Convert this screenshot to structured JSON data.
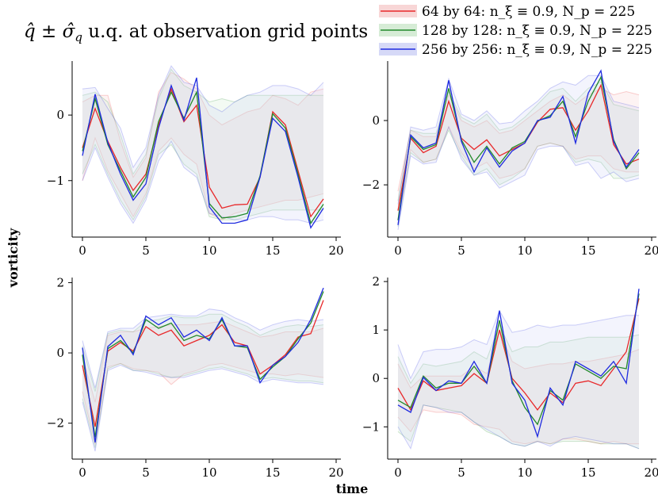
{
  "figure": {
    "title": "q̂ ± σ̂_q u.q. at observation grid points",
    "ylabel": "vorticity",
    "xlabel": "time"
  },
  "legend": [
    {
      "label": "64 by 64: n_ξ ≡ 0.9, N_p = 225",
      "color": "#e8282a",
      "fill": "#f6c8c8"
    },
    {
      "label": "128 by 128: n_ξ ≡ 0.9, N_p = 225",
      "color": "#22892b",
      "fill": "#c8e6c8"
    },
    {
      "label": "256 by 256: n_ξ ≡ 0.9, N_p = 225",
      "color": "#1f2be0",
      "fill": "#c8ccf4"
    }
  ],
  "chart_data": [
    {
      "type": "line",
      "panel": "top-left",
      "xlim": [
        -1,
        20
      ],
      "ylim": [
        -1.85,
        0.8
      ],
      "xticks": [
        0,
        5,
        10,
        15,
        20
      ],
      "yticks": [
        -1,
        0
      ],
      "x": [
        0,
        1,
        2,
        3,
        4,
        5,
        6,
        7,
        8,
        9,
        10,
        11,
        12,
        13,
        14,
        15,
        16,
        17,
        18,
        19
      ],
      "series": [
        {
          "name": "64 by 64",
          "values": [
            -0.5,
            0.1,
            -0.4,
            -0.8,
            -1.15,
            -0.9,
            -0.15,
            0.4,
            -0.1,
            0.15,
            -1.1,
            -1.42,
            -1.37,
            -1.36,
            -0.95,
            0.05,
            -0.15,
            -0.85,
            -1.55,
            -1.28
          ],
          "upper": [
            0.2,
            0.3,
            0.3,
            -0.4,
            -0.95,
            -0.65,
            0.35,
            0.65,
            0.55,
            0.4,
            0.0,
            -0.15,
            -0.05,
            0.05,
            0.1,
            0.3,
            0.25,
            0.15,
            0.35,
            0.4
          ],
          "lower": [
            -1.0,
            -0.35,
            -0.85,
            -1.2,
            -1.55,
            -1.2,
            -0.55,
            -0.35,
            -0.6,
            -0.75,
            -1.5,
            -1.6,
            -1.5,
            -1.45,
            -1.4,
            -1.35,
            -1.3,
            -1.3,
            -1.25,
            -1.2
          ]
        },
        {
          "name": "128 by 128",
          "values": [
            -0.55,
            0.25,
            -0.45,
            -0.85,
            -1.25,
            -0.95,
            -0.1,
            0.35,
            -0.05,
            0.35,
            -1.35,
            -1.57,
            -1.55,
            -1.5,
            -0.93,
            0.02,
            -0.2,
            -0.9,
            -1.65,
            -1.36
          ],
          "upper": [
            0.3,
            0.35,
            0.2,
            -0.3,
            -0.9,
            -0.6,
            0.25,
            0.7,
            0.45,
            0.35,
            0.2,
            0.25,
            0.2,
            0.3,
            0.3,
            0.3,
            0.3,
            0.3,
            0.3,
            0.3
          ],
          "lower": [
            -0.9,
            -0.45,
            -0.9,
            -1.3,
            -1.6,
            -1.25,
            -0.6,
            -0.45,
            -0.75,
            -0.9,
            -1.55,
            -1.6,
            -1.6,
            -1.55,
            -1.5,
            -1.45,
            -1.45,
            -1.45,
            -1.45,
            -1.45
          ]
        },
        {
          "name": "256 by 256",
          "values": [
            -0.62,
            0.32,
            -0.42,
            -0.9,
            -1.3,
            -1.05,
            -0.2,
            0.45,
            -0.08,
            0.57,
            -1.4,
            -1.65,
            -1.65,
            -1.6,
            -0.95,
            -0.05,
            -0.25,
            -0.95,
            -1.72,
            -1.42
          ],
          "upper": [
            0.4,
            0.42,
            0.1,
            -0.2,
            -0.8,
            -0.5,
            0.3,
            0.75,
            0.5,
            0.45,
            0.15,
            0.05,
            0.2,
            0.3,
            0.35,
            0.45,
            0.45,
            0.4,
            0.3,
            0.5
          ],
          "lower": [
            -1.0,
            -0.5,
            -0.95,
            -1.35,
            -1.65,
            -1.3,
            -0.7,
            -0.4,
            -0.8,
            -0.95,
            -1.5,
            -1.55,
            -1.6,
            -1.6,
            -1.55,
            -1.55,
            -1.6,
            -1.6,
            -1.65,
            -1.6
          ]
        }
      ]
    },
    {
      "type": "line",
      "panel": "top-right",
      "xlim": [
        -1,
        20
      ],
      "ylim": [
        -3.6,
        1.8
      ],
      "xticks": [
        0,
        5,
        10,
        15,
        20
      ],
      "yticks": [
        -2,
        0
      ],
      "x": [
        0,
        1,
        2,
        3,
        4,
        5,
        6,
        7,
        8,
        9,
        10,
        11,
        12,
        13,
        14,
        15,
        16,
        17,
        18,
        19
      ],
      "series": [
        {
          "name": "64 by 64",
          "values": [
            -2.8,
            -0.55,
            -1.0,
            -0.8,
            0.6,
            -0.55,
            -0.9,
            -0.6,
            -1.1,
            -0.9,
            -0.7,
            -0.05,
            0.35,
            0.4,
            -0.3,
            0.3,
            1.1,
            -0.75,
            -1.35,
            -1.2
          ],
          "upper": [
            -2.2,
            -0.3,
            -0.5,
            -0.5,
            0.8,
            0.0,
            -0.2,
            0.0,
            -0.4,
            -0.3,
            0.0,
            0.3,
            0.6,
            0.8,
            0.5,
            0.8,
            1.0,
            0.8,
            0.9,
            0.8
          ],
          "lower": [
            -3.2,
            -0.9,
            -1.3,
            -1.2,
            -0.2,
            -1.0,
            -1.5,
            -1.3,
            -1.8,
            -1.7,
            -1.5,
            -0.8,
            -0.7,
            -0.8,
            -1.2,
            -1.1,
            -1.1,
            -1.5,
            -1.6,
            -1.6
          ]
        },
        {
          "name": "128 by 128",
          "values": [
            -3.1,
            -0.5,
            -0.9,
            -0.75,
            1.0,
            -0.6,
            -1.3,
            -0.8,
            -1.35,
            -0.85,
            -0.65,
            -0.02,
            0.15,
            0.6,
            -0.5,
            0.6,
            1.35,
            -0.6,
            -1.5,
            -1.0
          ],
          "upper": [
            -2.5,
            -0.3,
            -0.4,
            -0.4,
            0.9,
            0.1,
            -0.1,
            0.2,
            -0.3,
            -0.2,
            0.1,
            0.5,
            0.9,
            1.0,
            0.6,
            1.0,
            1.2,
            0.5,
            0.4,
            0.3
          ],
          "lower": [
            -3.3,
            -1.0,
            -1.3,
            -1.2,
            -0.3,
            -1.1,
            -1.7,
            -1.5,
            -2.0,
            -1.8,
            -1.5,
            -0.8,
            -0.7,
            -0.8,
            -1.3,
            -1.2,
            -1.3,
            -1.8,
            -1.8,
            -1.7
          ]
        },
        {
          "name": "256 by 256",
          "values": [
            -3.25,
            -0.45,
            -0.85,
            -0.7,
            1.25,
            -0.65,
            -1.6,
            -0.85,
            -1.45,
            -0.95,
            -0.7,
            0.0,
            0.1,
            0.75,
            -0.7,
            0.85,
            1.55,
            -0.65,
            -1.45,
            -0.9
          ],
          "upper": [
            -2.6,
            -0.2,
            -0.3,
            -0.2,
            1.3,
            0.2,
            0.0,
            0.3,
            -0.1,
            -0.05,
            0.3,
            0.6,
            1.0,
            1.2,
            1.1,
            1.4,
            1.4,
            0.6,
            0.5,
            0.4
          ],
          "lower": [
            -3.4,
            -1.1,
            -1.35,
            -1.3,
            -0.2,
            -1.2,
            -1.7,
            -1.6,
            -2.1,
            -1.9,
            -1.7,
            -0.9,
            -0.8,
            -0.8,
            -1.4,
            -1.3,
            -1.8,
            -1.6,
            -1.9,
            -1.8
          ]
        }
      ]
    },
    {
      "type": "line",
      "panel": "bottom-left",
      "xlim": [
        -1,
        20
      ],
      "ylim": [
        -3.0,
        2.1
      ],
      "xticks": [
        0,
        5,
        10,
        15,
        20
      ],
      "yticks": [
        -2,
        0,
        2
      ],
      "x": [
        0,
        1,
        2,
        3,
        4,
        5,
        6,
        7,
        8,
        9,
        10,
        11,
        12,
        13,
        14,
        15,
        16,
        17,
        18,
        19
      ],
      "series": [
        {
          "name": "64 by 64",
          "values": [
            -0.35,
            -2.1,
            0.05,
            0.3,
            0.05,
            0.75,
            0.5,
            0.65,
            0.2,
            0.35,
            0.5,
            0.8,
            0.3,
            0.2,
            -0.6,
            -0.35,
            -0.05,
            0.45,
            0.55,
            1.5
          ],
          "upper": [
            -0.1,
            -1.4,
            0.5,
            0.6,
            0.6,
            0.7,
            0.75,
            0.8,
            0.8,
            0.8,
            0.85,
            0.9,
            0.75,
            0.6,
            0.45,
            0.5,
            0.6,
            0.6,
            0.6,
            0.7
          ],
          "lower": [
            -1.1,
            -2.6,
            -0.4,
            -0.3,
            -0.45,
            -0.5,
            -0.55,
            -0.9,
            -0.6,
            -0.5,
            -0.35,
            -0.3,
            -0.4,
            -0.5,
            -0.6,
            -0.6,
            -0.65,
            -0.6,
            -0.65,
            -0.7
          ]
        },
        {
          "name": "128 by 128",
          "values": [
            -0.05,
            -2.4,
            0.12,
            0.35,
            0.0,
            0.95,
            0.7,
            0.85,
            0.35,
            0.5,
            0.4,
            0.95,
            0.2,
            0.15,
            -0.75,
            -0.4,
            -0.1,
            0.4,
            0.85,
            1.75
          ],
          "upper": [
            0.2,
            -1.1,
            0.55,
            0.65,
            0.6,
            0.9,
            0.95,
            1.05,
            1.0,
            1.0,
            1.1,
            1.1,
            0.9,
            0.75,
            0.5,
            0.65,
            0.75,
            0.8,
            0.75,
            0.8
          ],
          "lower": [
            -1.3,
            -2.7,
            -0.45,
            -0.3,
            -0.5,
            -0.5,
            -0.6,
            -0.7,
            -0.65,
            -0.55,
            -0.45,
            -0.4,
            -0.5,
            -0.6,
            -0.75,
            -0.7,
            -0.75,
            -0.8,
            -0.8,
            -0.85
          ]
        },
        {
          "name": "256 by 256",
          "values": [
            0.15,
            -2.55,
            0.18,
            0.5,
            -0.05,
            1.05,
            0.8,
            1.0,
            0.45,
            0.65,
            0.35,
            1.0,
            0.2,
            0.2,
            -0.85,
            -0.35,
            -0.1,
            0.3,
            0.95,
            1.85
          ],
          "upper": [
            0.35,
            -1.0,
            0.6,
            0.7,
            0.7,
            1.0,
            1.05,
            1.1,
            1.05,
            1.05,
            1.25,
            1.2,
            1.0,
            0.85,
            0.65,
            0.8,
            0.9,
            0.95,
            0.9,
            0.95
          ],
          "lower": [
            -1.4,
            -2.8,
            -0.5,
            -0.35,
            -0.5,
            -0.55,
            -0.65,
            -0.7,
            -0.7,
            -0.6,
            -0.5,
            -0.45,
            -0.55,
            -0.65,
            -0.85,
            -0.75,
            -0.8,
            -0.85,
            -0.85,
            -0.9
          ]
        }
      ]
    },
    {
      "type": "line",
      "panel": "bottom-right",
      "xlim": [
        -1,
        20
      ],
      "ylim": [
        -1.65,
        2.05
      ],
      "xticks": [
        0,
        5,
        10,
        15,
        20
      ],
      "yticks": [
        -1,
        0,
        1,
        2
      ],
      "x": [
        0,
        1,
        2,
        3,
        4,
        5,
        6,
        7,
        8,
        9,
        10,
        11,
        12,
        13,
        14,
        15,
        16,
        17,
        18,
        19
      ],
      "series": [
        {
          "name": "64 by 64",
          "values": [
            -0.2,
            -0.65,
            -0.05,
            -0.25,
            -0.2,
            -0.15,
            0.1,
            -0.1,
            1.0,
            0.0,
            -0.3,
            -0.65,
            -0.3,
            -0.5,
            -0.1,
            -0.05,
            -0.15,
            0.2,
            0.55,
            1.65
          ],
          "upper": [
            0.3,
            -0.2,
            0.05,
            0.05,
            0.05,
            0.05,
            0.25,
            0.1,
            1.0,
            0.35,
            0.2,
            0.25,
            0.3,
            0.3,
            0.35,
            0.35,
            0.4,
            0.45,
            0.5,
            0.6
          ],
          "lower": [
            -0.8,
            -1.1,
            -0.65,
            -0.7,
            -0.7,
            -0.75,
            -0.95,
            -1.0,
            -1.05,
            -1.3,
            -1.35,
            -1.3,
            -1.35,
            -1.25,
            -1.25,
            -1.3,
            -1.35,
            -1.3,
            -1.35,
            -1.35
          ]
        },
        {
          "name": "128 by 128",
          "values": [
            -0.45,
            -0.6,
            0.05,
            -0.2,
            -0.1,
            -0.1,
            0.25,
            -0.1,
            1.2,
            -0.05,
            -0.6,
            -0.95,
            -0.25,
            -0.45,
            0.3,
            0.15,
            0.0,
            0.25,
            0.2,
            1.75
          ],
          "upper": [
            0.45,
            -0.1,
            0.3,
            0.25,
            0.3,
            0.35,
            0.55,
            0.4,
            1.1,
            0.55,
            0.65,
            0.65,
            0.75,
            0.75,
            0.8,
            0.85,
            0.85,
            0.85,
            0.85,
            0.9
          ],
          "lower": [
            -1.1,
            -1.3,
            -0.55,
            -0.6,
            -0.65,
            -0.7,
            -0.9,
            -1.1,
            -1.2,
            -1.35,
            -1.4,
            -1.3,
            -1.35,
            -1.3,
            -1.3,
            -1.3,
            -1.35,
            -1.35,
            -1.35,
            -1.45
          ]
        },
        {
          "name": "256 by 256",
          "values": [
            -0.55,
            -0.7,
            0.02,
            -0.25,
            -0.05,
            -0.1,
            0.35,
            -0.1,
            1.4,
            -0.1,
            -0.45,
            -1.2,
            -0.2,
            -0.55,
            0.35,
            0.2,
            0.05,
            0.35,
            -0.1,
            1.85
          ],
          "upper": [
            0.7,
            0.0,
            0.55,
            0.6,
            0.6,
            0.65,
            0.8,
            0.7,
            1.4,
            0.95,
            1.0,
            1.1,
            1.05,
            1.1,
            1.1,
            1.15,
            1.2,
            1.25,
            1.3,
            1.3
          ],
          "lower": [
            -1.0,
            -1.45,
            -0.55,
            -0.6,
            -0.7,
            -0.7,
            -0.9,
            -1.05,
            -1.2,
            -1.35,
            -1.4,
            -1.3,
            -1.4,
            -1.25,
            -1.2,
            -1.25,
            -1.3,
            -1.35,
            -1.35,
            -1.45
          ]
        }
      ]
    }
  ]
}
